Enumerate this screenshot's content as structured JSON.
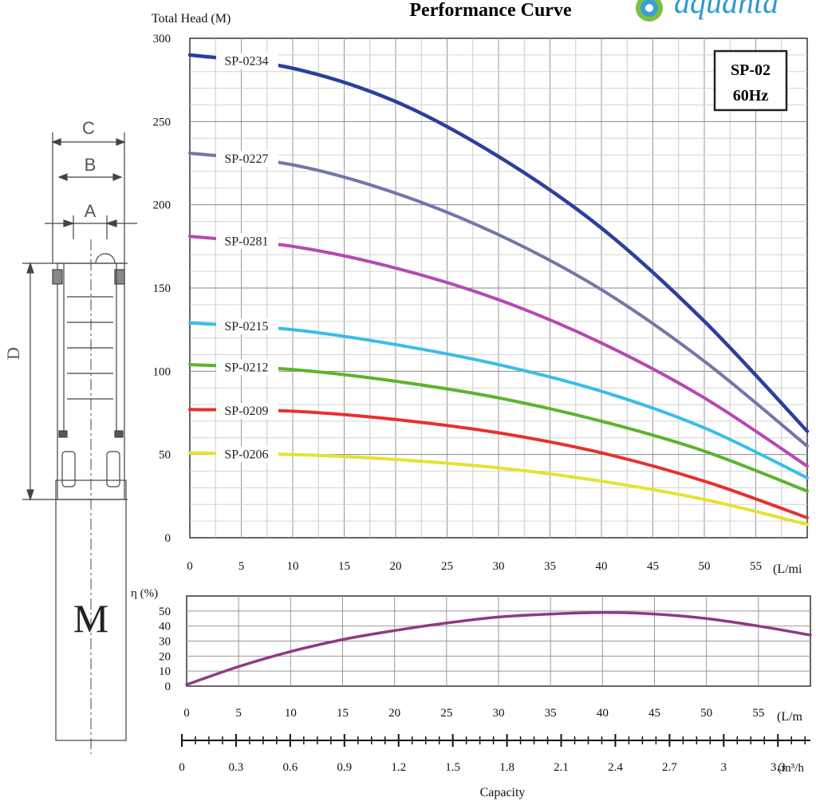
{
  "header": {
    "title": "Performance Curve",
    "brand": "aquanta",
    "model_box": {
      "model": "SP-02",
      "frequency": "60Hz"
    }
  },
  "diagram": {
    "dim_labels": [
      "C",
      "B",
      "A",
      "D"
    ],
    "motor_label": "M"
  },
  "chart_data": [
    {
      "type": "line",
      "ylabel": "Total Head (M)",
      "xlabel_unit": "(L/mi",
      "xlim": [
        0,
        60
      ],
      "ylim": [
        0,
        300
      ],
      "x_ticks": [
        0,
        5,
        10,
        15,
        20,
        25,
        30,
        35,
        40,
        45,
        50,
        55
      ],
      "y_ticks": [
        0,
        50,
        100,
        150,
        200,
        250,
        300
      ],
      "grid": true,
      "series": [
        {
          "name": "SP-0234",
          "color": "#2b3f9e",
          "x": [
            0,
            10,
            20,
            30,
            40,
            50,
            60
          ],
          "y": [
            290,
            282,
            262,
            229,
            186,
            130,
            64
          ]
        },
        {
          "name": "SP-0227",
          "color": "#7276a8",
          "x": [
            0,
            10,
            20,
            30,
            40,
            50,
            60
          ],
          "y": [
            231,
            224,
            207,
            182,
            149,
            106,
            55
          ]
        },
        {
          "name": "SP-0281",
          "color": "#b549b2",
          "x": [
            0,
            10,
            20,
            30,
            40,
            50,
            60
          ],
          "y": [
            181,
            175,
            162,
            143,
            117,
            84,
            43
          ]
        },
        {
          "name": "SP-0215",
          "color": "#39bde8",
          "x": [
            0,
            10,
            20,
            30,
            40,
            50,
            60
          ],
          "y": [
            129,
            125,
            116,
            104,
            88,
            66,
            36
          ]
        },
        {
          "name": "SP-0212",
          "color": "#5cb42e",
          "x": [
            0,
            10,
            20,
            30,
            40,
            50,
            60
          ],
          "y": [
            104,
            101,
            94,
            84,
            70,
            52,
            28
          ]
        },
        {
          "name": "SP-0209",
          "color": "#e8302c",
          "x": [
            0,
            10,
            20,
            30,
            40,
            50,
            60
          ],
          "y": [
            77,
            76,
            71,
            63,
            51,
            34,
            12
          ]
        },
        {
          "name": "SP-0206",
          "color": "#e6e230",
          "x": [
            0,
            10,
            20,
            30,
            40,
            50,
            60
          ],
          "y": [
            51,
            50,
            47,
            42,
            34,
            23,
            8
          ]
        }
      ]
    },
    {
      "type": "line",
      "ylabel": "η (%)",
      "xlabel_unit": "(L/m",
      "xlim": [
        0,
        60
      ],
      "ylim": [
        0,
        60
      ],
      "x_ticks": [
        0,
        5,
        10,
        15,
        20,
        25,
        30,
        35,
        40,
        45,
        50,
        55
      ],
      "y_ticks": [
        0,
        10,
        20,
        30,
        40,
        50
      ],
      "grid": true,
      "series": [
        {
          "color": "#8e3a83",
          "x": [
            0,
            5,
            10,
            15,
            20,
            25,
            30,
            35,
            40,
            45,
            50,
            55,
            60
          ],
          "y": [
            1,
            13,
            23,
            31,
            37,
            42,
            46,
            48,
            49,
            48,
            45,
            40,
            34
          ]
        }
      ]
    }
  ],
  "capacity_axis": {
    "label": "Capacity",
    "unit": "(m³/h",
    "ticks": [
      "0",
      "0.3",
      "0.6",
      "0.9",
      "1.2",
      "1.5",
      "1.8",
      "2.1",
      "2.4",
      "2.7",
      "3",
      "3.3"
    ]
  }
}
